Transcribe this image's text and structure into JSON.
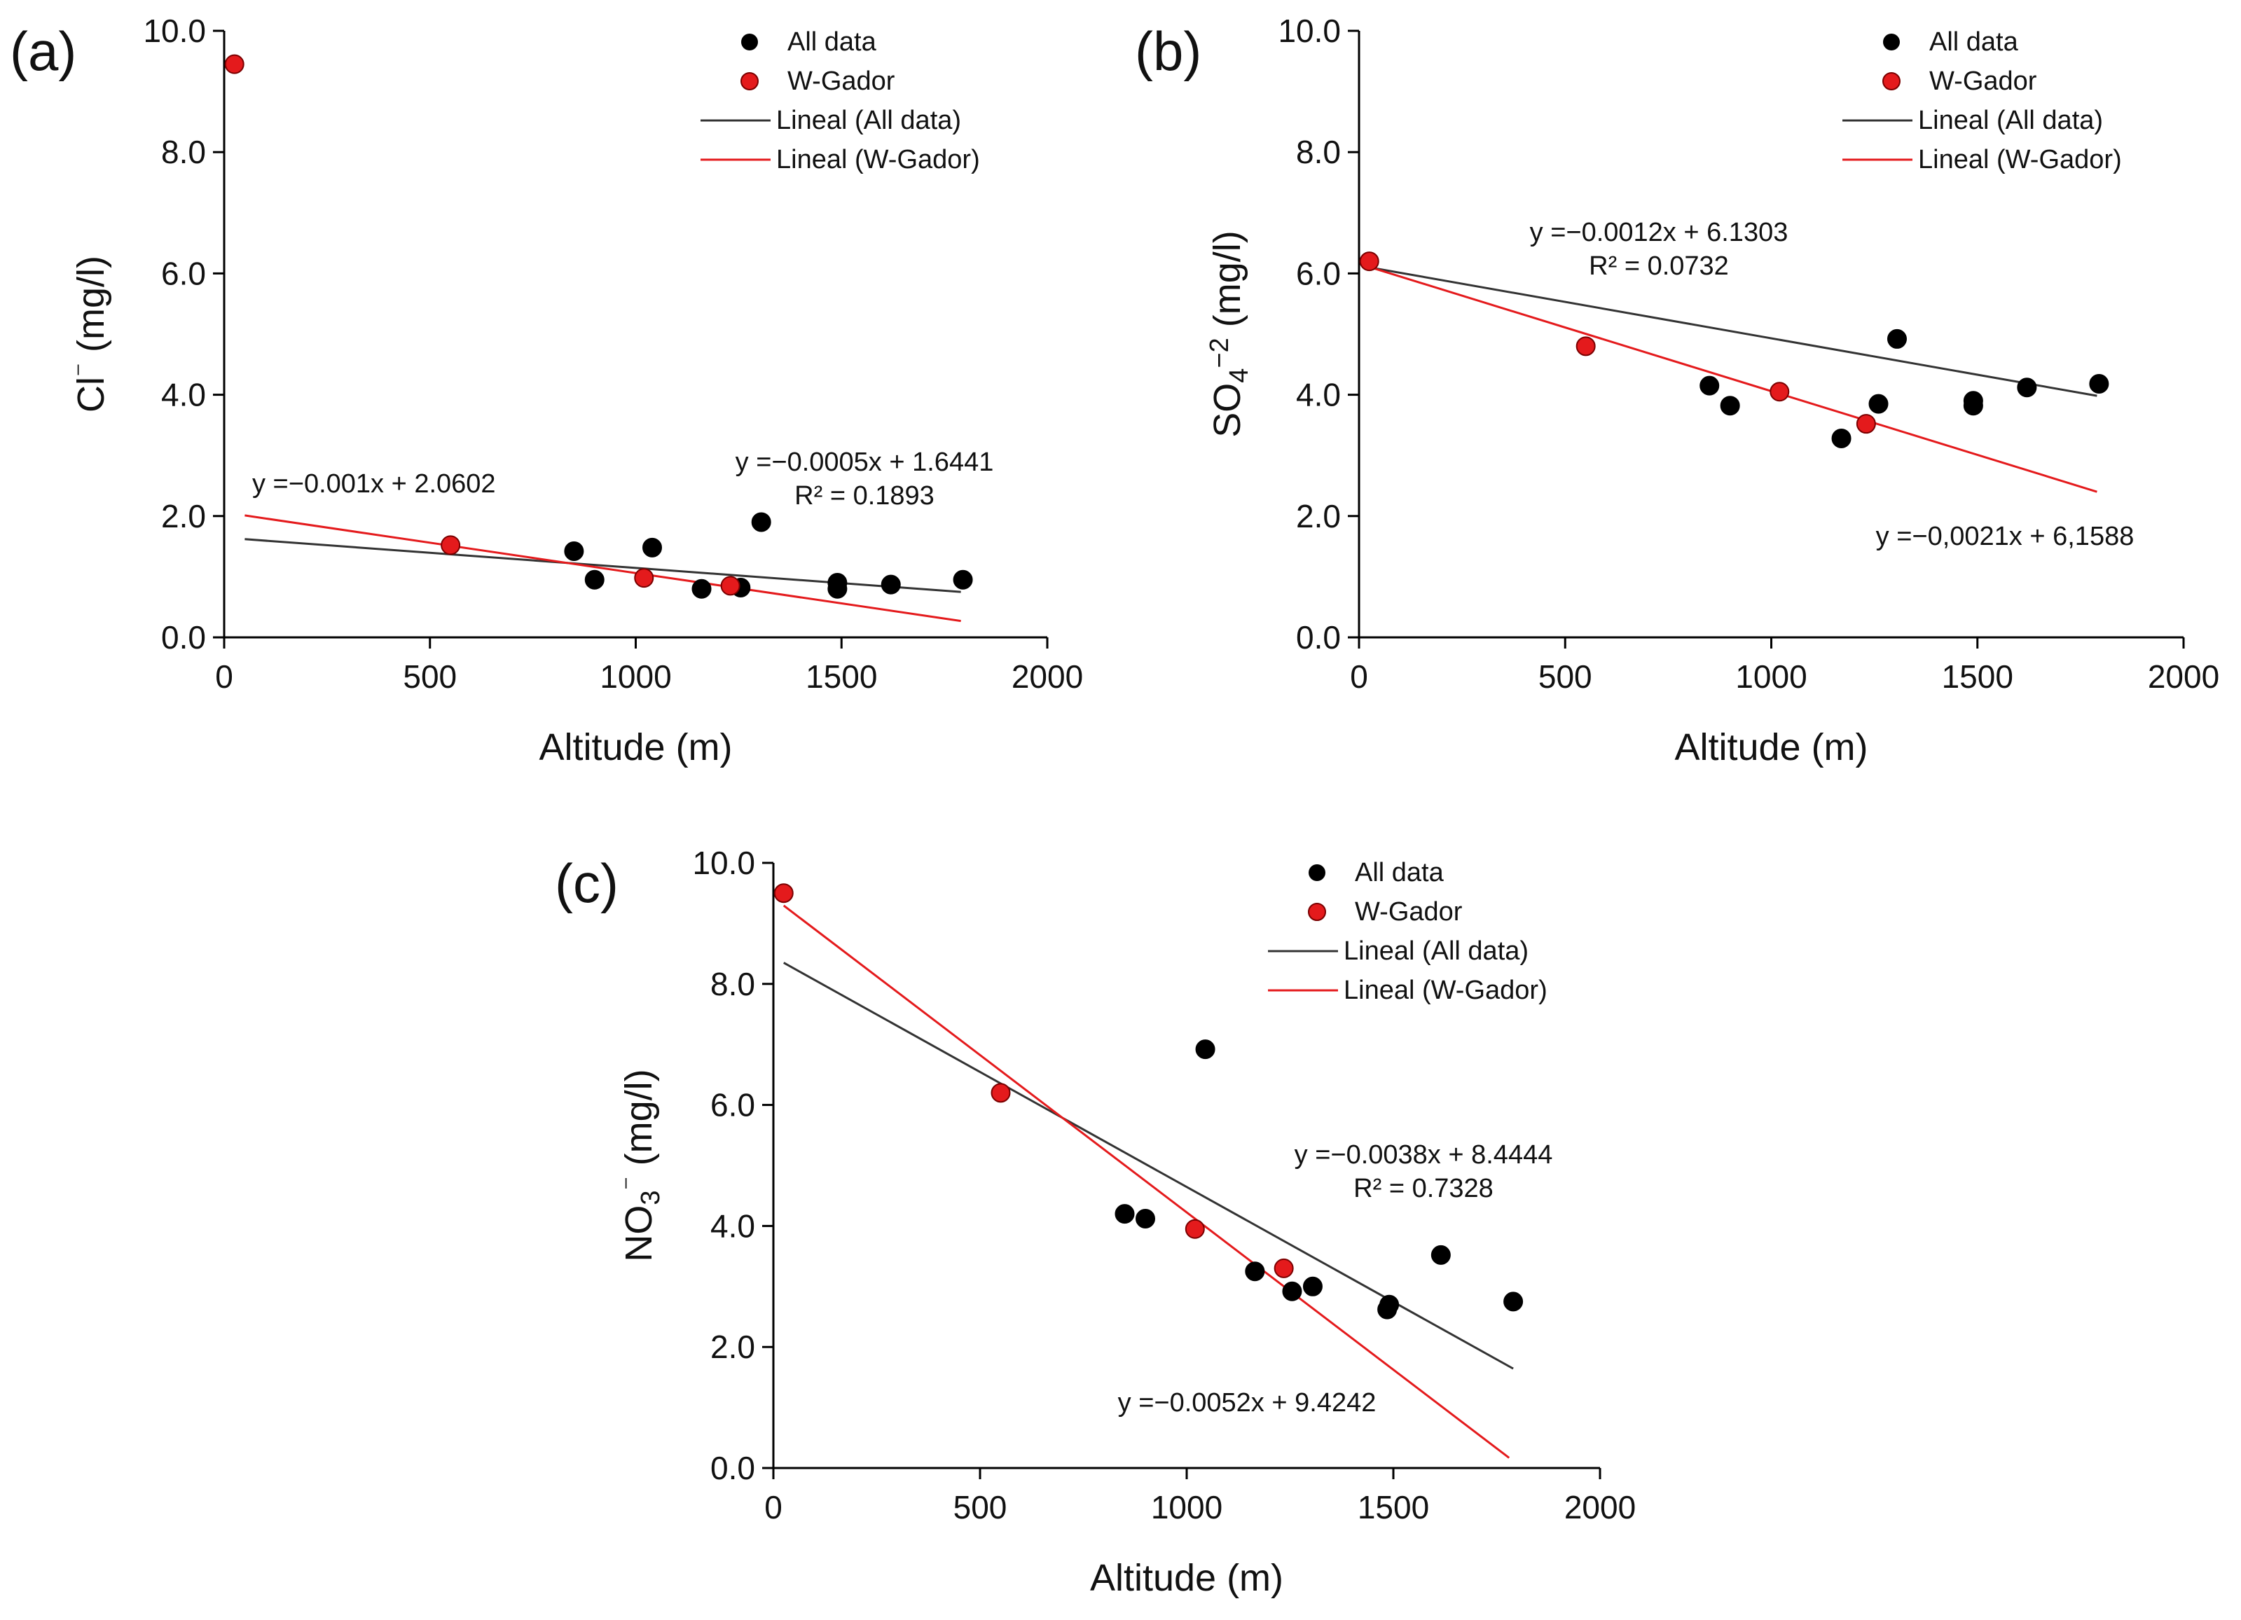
{
  "chart_data": [
    {
      "type": "scatter",
      "panel_label": "(a)",
      "xlabel": "Altitude (m)",
      "ylabel": [
        "Cl",
        "⁻",
        " (mg/l)"
      ],
      "xlim": [
        0,
        2000
      ],
      "ylim": [
        0,
        10
      ],
      "xticks": [
        "0",
        "500",
        "1000",
        "1500",
        "2000"
      ],
      "yticks": [
        "0.0",
        "2.0",
        "4.0",
        "6.0",
        "8.0",
        "10.0"
      ],
      "legend_position": "top-right",
      "legend": [
        "All data",
        "W-Gador",
        "Lineal (All data)",
        "Lineal (W-Gador)"
      ],
      "series": [
        {
          "name": "All data",
          "color": "#000000",
          "x": [
            850,
            900,
            1040,
            1160,
            1255,
            1305,
            1490,
            1490,
            1620,
            1795
          ],
          "y": [
            1.42,
            0.95,
            1.48,
            0.8,
            0.82,
            1.9,
            0.8,
            0.9,
            0.87,
            0.95
          ]
        },
        {
          "name": "W-Gador",
          "color": "#e41a1c",
          "x": [
            25,
            550,
            1020,
            1230
          ],
          "y": [
            9.45,
            1.52,
            0.98,
            0.85
          ]
        }
      ],
      "fits": [
        {
          "name": "Lineal (All data)",
          "color": "#333333",
          "slope": -0.0005,
          "intercept": 1.6441,
          "x_range": [
            50,
            1790
          ],
          "equation": "y =−0.0005x + 1.6441",
          "r2": "R² = 0.1893"
        },
        {
          "name": "Lineal (W-Gador)",
          "color": "#e41a1c",
          "slope": -0.001,
          "intercept": 2.0602,
          "x_range": [
            50,
            1790
          ],
          "equation": "y =−0.001x + 2.0602",
          "r2": ""
        }
      ]
    },
    {
      "type": "scatter",
      "panel_label": "(b)",
      "xlabel": "Altitude (m)",
      "ylabel": [
        "SO",
        "4",
        "−2",
        " (mg/l)"
      ],
      "xlim": [
        0,
        2000
      ],
      "ylim": [
        0,
        10
      ],
      "xticks": [
        "0",
        "500",
        "1000",
        "1500",
        "2000"
      ],
      "yticks": [
        "0.0",
        "2.0",
        "4.0",
        "6.0",
        "8.0",
        "10.0"
      ],
      "legend_position": "top-right",
      "legend": [
        "All data",
        "W-Gador",
        "Lineal (All data)",
        "Lineal (W-Gador)"
      ],
      "series": [
        {
          "name": "All data",
          "color": "#000000",
          "x": [
            850,
            900,
            1170,
            1260,
            1305,
            1490,
            1490,
            1620,
            1795
          ],
          "y": [
            4.15,
            3.82,
            3.28,
            3.85,
            4.92,
            3.82,
            3.9,
            4.12,
            4.18
          ]
        },
        {
          "name": "W-Gador",
          "color": "#e41a1c",
          "x": [
            25,
            550,
            1020,
            1230
          ],
          "y": [
            6.2,
            4.8,
            4.05,
            3.52
          ]
        }
      ],
      "fits": [
        {
          "name": "Lineal (All data)",
          "color": "#333333",
          "slope": -0.0012,
          "intercept": 6.1303,
          "x_range": [
            25,
            1790
          ],
          "equation": "y =−0.0012x + 6.1303",
          "r2": "R² = 0.0732"
        },
        {
          "name": "Lineal (W-Gador)",
          "color": "#e41a1c",
          "slope": -0.0021,
          "intercept": 6.1588,
          "x_range": [
            25,
            1790
          ],
          "equation": "y =−0,0021x + 6,1588",
          "r2": ""
        }
      ]
    },
    {
      "type": "scatter",
      "panel_label": "(c)",
      "xlabel": "Altitude (m)",
      "ylabel": [
        "NO",
        "3",
        "⁻",
        " (mg/l)"
      ],
      "xlim": [
        0,
        2000
      ],
      "ylim": [
        0,
        10
      ],
      "xticks": [
        "0",
        "500",
        "1000",
        "1500",
        "2000"
      ],
      "yticks": [
        "0.0",
        "2.0",
        "4.0",
        "6.0",
        "8.0",
        "10.0"
      ],
      "legend_position": "top-right",
      "legend": [
        "All data",
        "W-Gador",
        "Lineal (All data)",
        "Lineal (W-Gador)"
      ],
      "series": [
        {
          "name": "All data",
          "color": "#000000",
          "x": [
            850,
            900,
            1045,
            1165,
            1255,
            1305,
            1485,
            1490,
            1615,
            1790
          ],
          "y": [
            4.2,
            4.12,
            6.92,
            3.25,
            2.92,
            3.0,
            2.62,
            2.7,
            3.52,
            2.75
          ]
        },
        {
          "name": "W-Gador",
          "color": "#e41a1c",
          "x": [
            25,
            550,
            1020,
            1235
          ],
          "y": [
            9.5,
            6.2,
            3.95,
            3.3
          ]
        }
      ],
      "fits": [
        {
          "name": "Lineal (All data)",
          "color": "#333333",
          "slope": -0.0038,
          "intercept": 8.4444,
          "x_range": [
            25,
            1790
          ],
          "equation": "y =−0.0038x + 8.4444",
          "r2": "R² = 0.7328"
        },
        {
          "name": "Lineal (W-Gador)",
          "color": "#e41a1c",
          "slope": -0.0052,
          "intercept": 9.4242,
          "x_range": [
            25,
            1780
          ],
          "equation": "y =−0.0052x + 9.4242",
          "r2": ""
        }
      ]
    }
  ]
}
